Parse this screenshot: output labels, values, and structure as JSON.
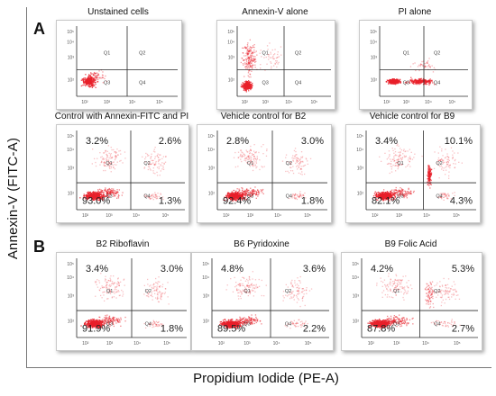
{
  "figure": {
    "ylabel": "Annexin-V (FITC-A)",
    "xlabel": "Propidium Iodide (PE-A)",
    "panel_a_letter": "A",
    "panel_b_letter": "B"
  },
  "chart_data": [
    {
      "type": "scatter",
      "title": "Unstained cells",
      "quadrant_labels": [
        "Q1",
        "Q2",
        "Q3",
        "Q4"
      ],
      "percentages": null,
      "y_ticks": [
        "10⁵",
        "10⁴",
        "10³",
        "10²"
      ],
      "x_ticks": [
        "10²",
        "10³",
        "10⁴",
        "10⁵"
      ]
    },
    {
      "type": "scatter",
      "title": "Annexin-V alone",
      "quadrant_labels": [
        "Q1",
        "Q2",
        "Q3",
        "Q4"
      ],
      "percentages": null,
      "y_ticks": [
        "10⁵",
        "10⁴",
        "10³",
        "10²"
      ],
      "x_ticks": [
        "10²",
        "10³",
        "10⁴",
        "10⁵"
      ]
    },
    {
      "type": "scatter",
      "title": "PI alone",
      "quadrant_labels": [
        "Q1",
        "Q2",
        "Q3",
        "Q4"
      ],
      "percentages": null,
      "y_ticks": [
        "10⁵",
        "10⁴",
        "10³",
        "10²"
      ],
      "x_ticks": [
        "10²",
        "10³",
        "10⁴",
        "10⁵"
      ]
    },
    {
      "type": "scatter",
      "title": "Control with Annexin-FITC and PI",
      "quadrant_labels": [
        "Q1",
        "Q2",
        "Q3",
        "Q4"
      ],
      "percentages": {
        "upper_left": "3.2%",
        "upper_right": "2.6%",
        "lower_left": "93.0%",
        "lower_right": "1.3%"
      },
      "y_ticks": [
        "10⁵",
        "10⁴",
        "10³",
        "10²"
      ],
      "x_ticks": [
        "10²",
        "10³",
        "10⁴",
        "10⁵"
      ]
    },
    {
      "type": "scatter",
      "title": "Vehicle control for B2",
      "quadrant_labels": [
        "Q1",
        "Q2",
        "Q3",
        "Q4"
      ],
      "percentages": {
        "upper_left": "2.8%",
        "upper_right": "3.0%",
        "lower_left": "92.4%",
        "lower_right": "1.8%"
      },
      "y_ticks": [
        "10⁵",
        "10⁴",
        "10³",
        "10²"
      ],
      "x_ticks": [
        "10²",
        "10³",
        "10⁴",
        "10⁵"
      ]
    },
    {
      "type": "scatter",
      "title": "Vehicle control for B9",
      "quadrant_labels": [
        "Q1",
        "Q2",
        "Q3",
        "Q4"
      ],
      "percentages": {
        "upper_left": "3.4%",
        "upper_right": "10.1%",
        "lower_left": "82.1%",
        "lower_right": "4.3%"
      },
      "y_ticks": [
        "10⁵",
        "10⁴",
        "10³",
        "10²"
      ],
      "x_ticks": [
        "10²",
        "10³",
        "10⁴",
        "10⁵"
      ]
    },
    {
      "type": "scatter",
      "title": "B2 Riboflavin",
      "quadrant_labels": [
        "Q1",
        "Q2",
        "Q3",
        "Q4"
      ],
      "percentages": {
        "upper_left": "3.4%",
        "upper_right": "3.0%",
        "lower_left": "91.9%",
        "lower_right": "1.8%"
      },
      "y_ticks": [
        "10⁵",
        "10⁴",
        "10³",
        "10²"
      ],
      "x_ticks": [
        "10²",
        "10³",
        "10⁴",
        "10⁵"
      ]
    },
    {
      "type": "scatter",
      "title": "B6 Pyridoxine",
      "quadrant_labels": [
        "Q1",
        "Q2",
        "Q3",
        "Q4"
      ],
      "percentages": {
        "upper_left": "4.8%",
        "upper_right": "3.6%",
        "lower_left": "89.5%",
        "lower_right": "2.2%"
      },
      "y_ticks": [
        "10⁵",
        "10⁴",
        "10³",
        "10²"
      ],
      "x_ticks": [
        "10²",
        "10³",
        "10⁴",
        "10⁵"
      ]
    },
    {
      "type": "scatter",
      "title": "B9 Folic Acid",
      "quadrant_labels": [
        "Q1",
        "Q2",
        "Q3",
        "Q4"
      ],
      "percentages": {
        "upper_left": "4.2%",
        "upper_right": "5.3%",
        "lower_left": "87.8%",
        "lower_right": "2.7%"
      },
      "y_ticks": [
        "10⁵",
        "10⁴",
        "10³",
        "10²"
      ],
      "x_ticks": [
        "10²",
        "10³",
        "10⁴",
        "10⁵"
      ]
    }
  ],
  "colors": {
    "events": "#e8202a",
    "gate": "#2b2b2b",
    "text": "#111111"
  }
}
